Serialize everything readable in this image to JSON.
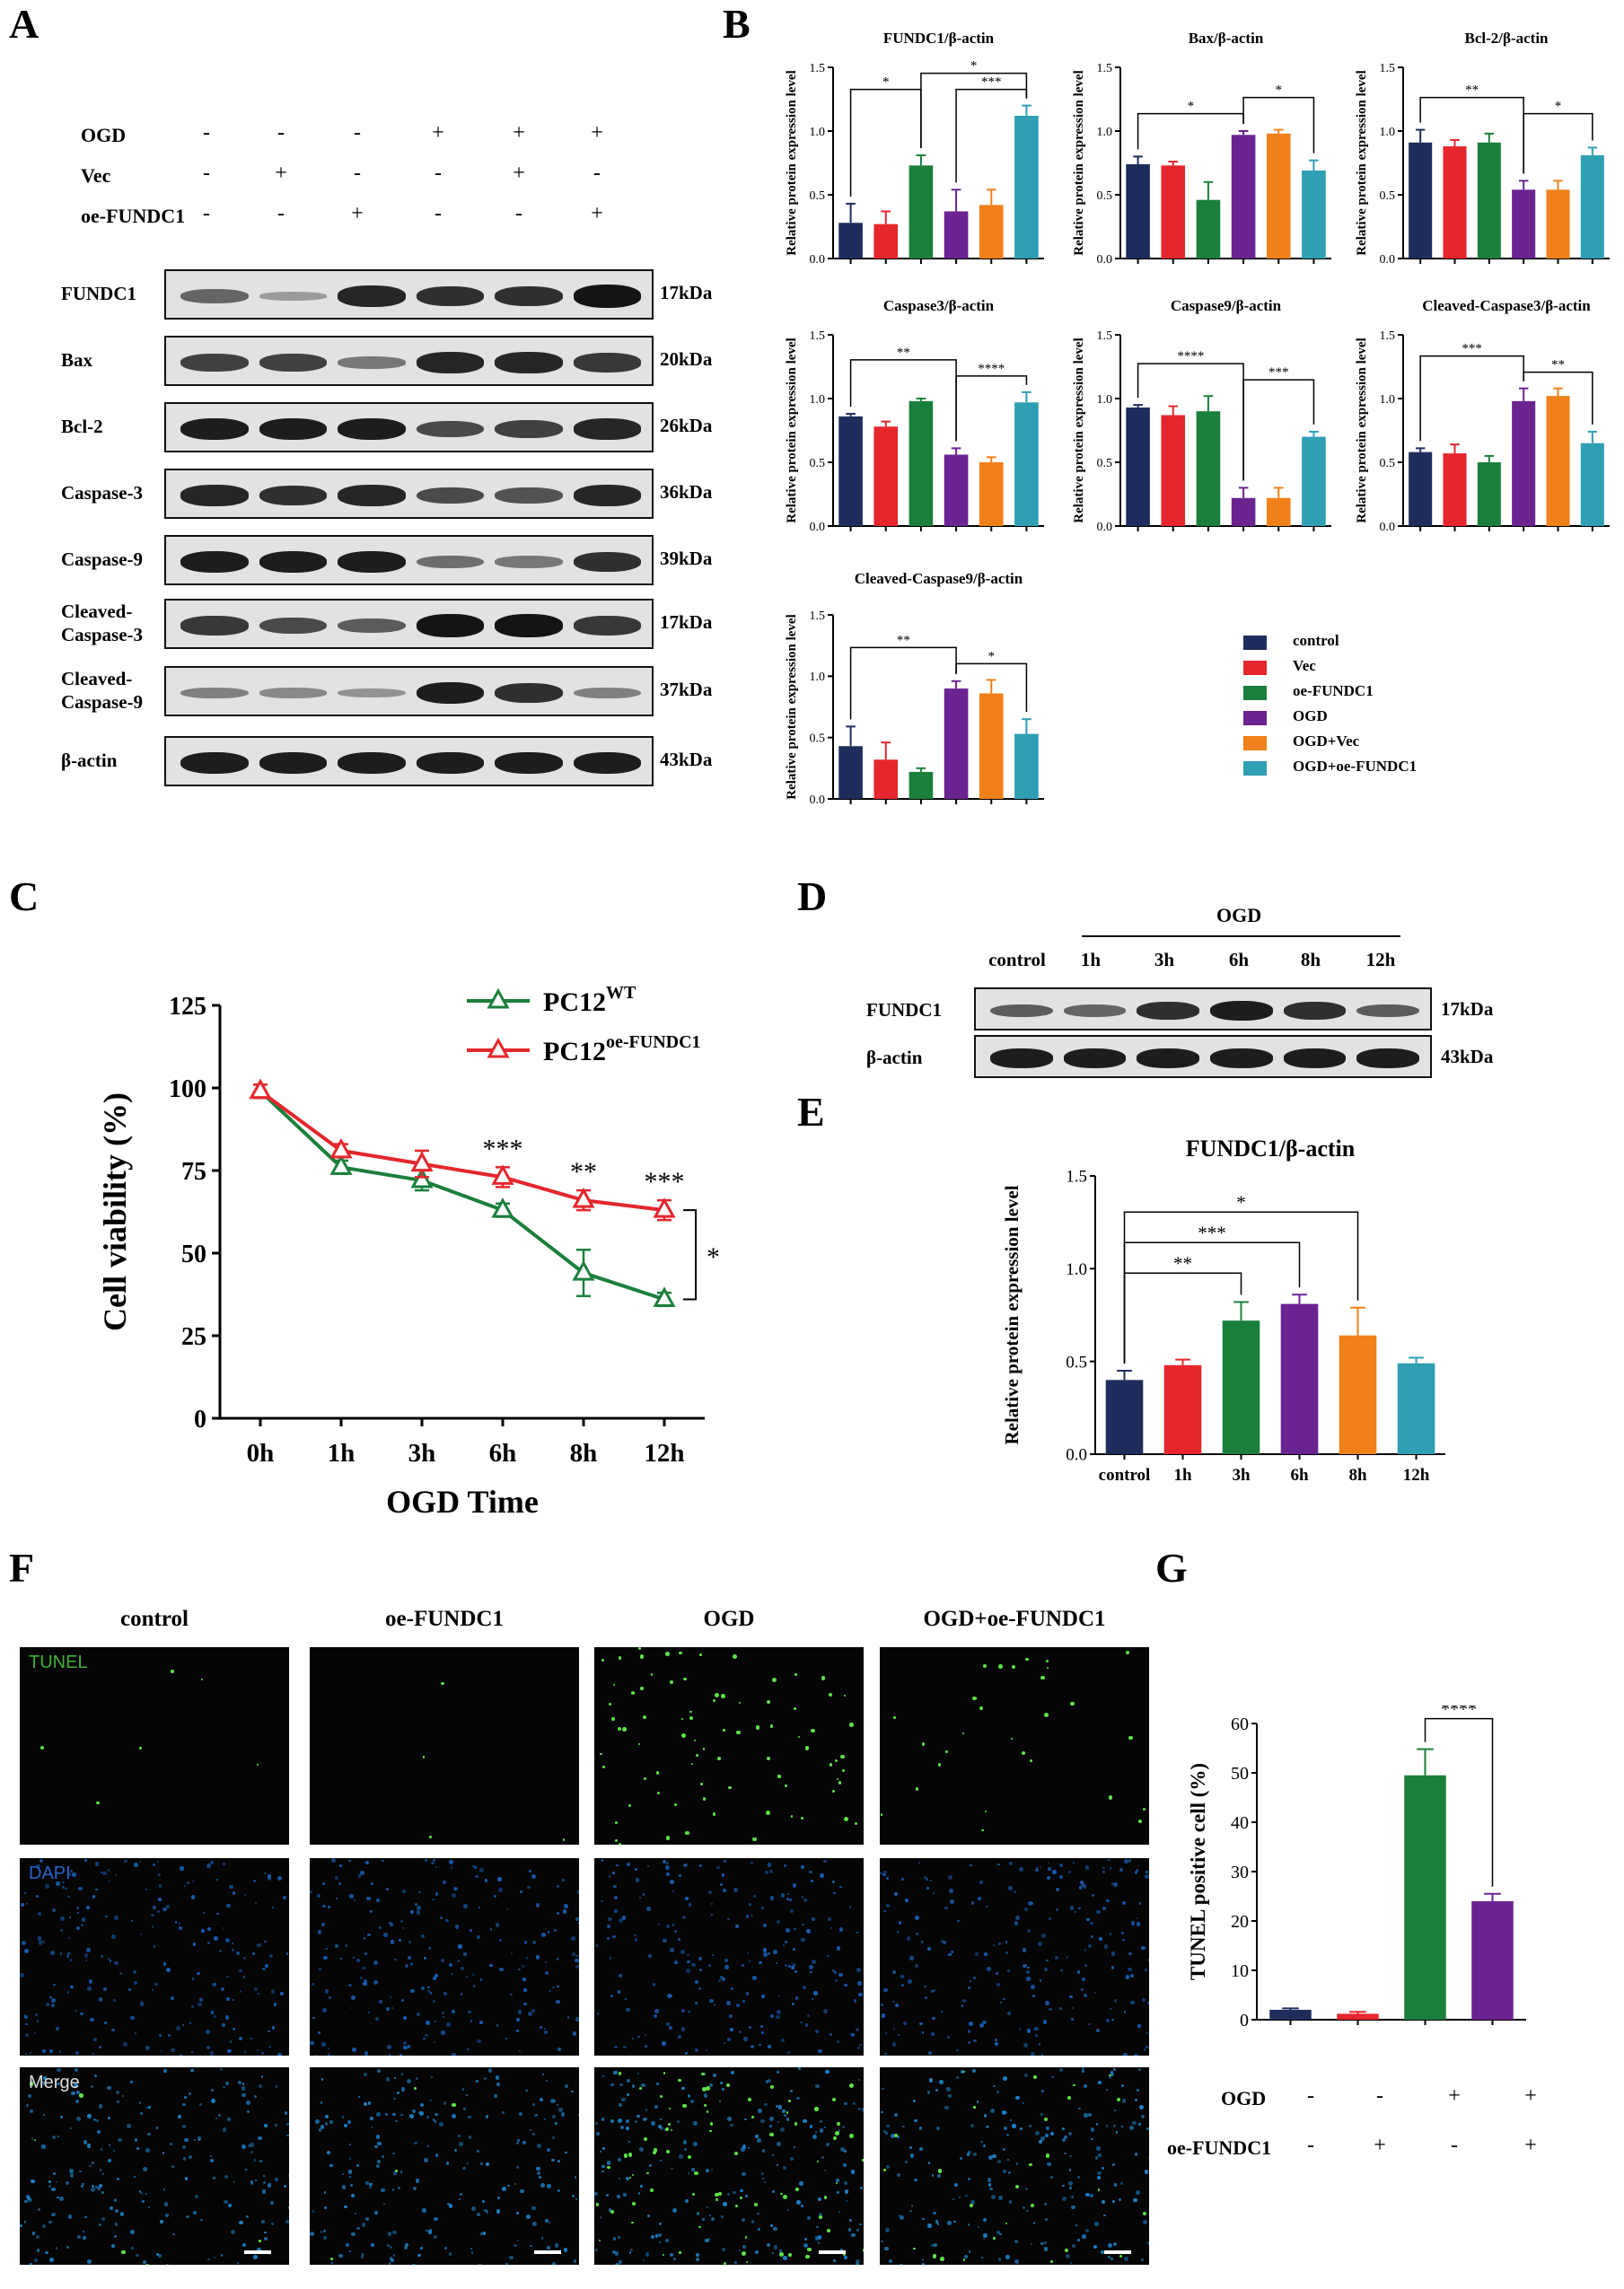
{
  "panels": {
    "A": "A",
    "B": "B",
    "C": "C",
    "D": "D",
    "E": "E",
    "F": "F",
    "G": "G"
  },
  "colors": {
    "control": "#1f2d5c",
    "vec": "#e5262d",
    "oe": "#1b7f3c",
    "ogd": "#6a2390",
    "ogd_vec": "#f08019",
    "ogd_oe": "#2f9fb3"
  },
  "panelA": {
    "condition_rows": [
      {
        "label": "OGD",
        "values": [
          "-",
          "-",
          "-",
          "+",
          "+",
          "+"
        ]
      },
      {
        "label": "Vec",
        "values": [
          "-",
          "+",
          "-",
          "-",
          "+",
          "-"
        ]
      },
      {
        "label": "oe-FUNDC1",
        "values": [
          "-",
          "-",
          "+",
          "-",
          "-",
          "+"
        ]
      }
    ],
    "blots": [
      {
        "label": "FUNDC1",
        "kda": "17kDa",
        "intensity": [
          0.55,
          0.25,
          0.9,
          0.85,
          0.85,
          1.0
        ]
      },
      {
        "label": "Bax",
        "kda": "20kDa",
        "intensity": [
          0.75,
          0.75,
          0.45,
          0.9,
          0.9,
          0.8
        ]
      },
      {
        "label": "Bcl-2",
        "kda": "26kDa",
        "intensity": [
          0.95,
          0.95,
          0.95,
          0.7,
          0.75,
          0.9
        ]
      },
      {
        "label": "Caspase-3",
        "kda": "36kDa",
        "intensity": [
          0.9,
          0.85,
          0.9,
          0.7,
          0.65,
          0.9
        ]
      },
      {
        "label": "Caspase-9",
        "kda": "39kDa",
        "intensity": [
          0.95,
          0.95,
          0.95,
          0.5,
          0.45,
          0.85
        ]
      },
      {
        "label": "Cleaved-\nCaspase-3",
        "kda": "17kDa",
        "intensity": [
          0.8,
          0.7,
          0.6,
          1.0,
          1.0,
          0.8
        ]
      },
      {
        "label": "Cleaved-\nCaspase-9",
        "kda": "37kDa",
        "intensity": [
          0.4,
          0.35,
          0.3,
          0.95,
          0.85,
          0.4
        ]
      },
      {
        "label": "β-actin",
        "kda": "43kDa",
        "intensity": [
          0.95,
          0.95,
          0.95,
          0.95,
          0.95,
          0.95
        ]
      }
    ]
  },
  "panelB": {
    "ylabel": "Relative protein expression level",
    "legend": [
      "control",
      "Vec",
      "oe-FUNDC1",
      "OGD",
      "OGD+Vec",
      "OGD+oe-FUNDC1"
    ]
  },
  "panelC": {
    "xlabel": "OGD Time",
    "ylabel": "Cell viability (%)",
    "legend_base": "PC12",
    "legend_sups": [
      "WT",
      "oe-FUNDC1"
    ],
    "annotations": [
      "***",
      "**",
      "***",
      "****"
    ]
  },
  "panelD": {
    "group_label": "OGD",
    "lanes": [
      "control",
      "1h",
      "3h",
      "6h",
      "8h",
      "12h"
    ],
    "blots": [
      {
        "label": "FUNDC1",
        "kda": "17kDa",
        "intensity": [
          0.6,
          0.55,
          0.85,
          0.95,
          0.85,
          0.6
        ]
      },
      {
        "label": "β-actin",
        "kda": "43kDa",
        "intensity": [
          0.95,
          0.95,
          0.95,
          0.95,
          0.95,
          0.95
        ]
      }
    ]
  },
  "panelF": {
    "columns": [
      "control",
      "oe-FUNDC1",
      "OGD",
      "OGD+oe-FUNDC1"
    ],
    "rows": [
      "TUNEL",
      "DAPI",
      "Merge"
    ],
    "tunel_density": [
      6,
      4,
      80,
      28
    ]
  },
  "panelG": {
    "rows": [
      {
        "label": "OGD",
        "values": [
          "-",
          "-",
          "+",
          "+"
        ]
      },
      {
        "label": "oe-FUNDC1",
        "values": [
          "-",
          "+",
          "-",
          "+"
        ]
      }
    ]
  },
  "chart_data": [
    {
      "id": "B1",
      "type": "bar",
      "title": "FUNDC1/β-actin",
      "ylabel": "Relative protein expression level",
      "categories": [
        "control",
        "Vec",
        "oe-FUNDC1",
        "OGD",
        "OGD+Vec",
        "OGD+oe-FUNDC1"
      ],
      "values": [
        0.28,
        0.27,
        0.73,
        0.37,
        0.42,
        1.12
      ],
      "errors": [
        0.15,
        0.1,
        0.08,
        0.17,
        0.12,
        0.08
      ],
      "ylim": [
        0,
        1.5
      ],
      "yticks": [
        0,
        0.5,
        1.0,
        1.5
      ],
      "sig": [
        {
          "from": 0,
          "to": 2,
          "label": "*",
          "level": 1
        },
        {
          "from": 2,
          "to": 5,
          "label": "*",
          "level": 2
        },
        {
          "from": 3,
          "to": 5,
          "label": "***",
          "level": 1
        }
      ]
    },
    {
      "id": "B2",
      "type": "bar",
      "title": "Bax/β-actin",
      "ylabel": "Relative protein expression level",
      "categories": [
        "control",
        "Vec",
        "oe-FUNDC1",
        "OGD",
        "OGD+Vec",
        "OGD+oe-FUNDC1"
      ],
      "values": [
        0.74,
        0.73,
        0.46,
        0.97,
        0.98,
        0.69
      ],
      "errors": [
        0.06,
        0.03,
        0.14,
        0.03,
        0.03,
        0.08
      ],
      "ylim": [
        0,
        1.5
      ],
      "yticks": [
        0,
        0.5,
        1.0,
        1.5
      ],
      "sig": [
        {
          "from": 0,
          "to": 3,
          "label": "*",
          "level": 1
        },
        {
          "from": 3,
          "to": 5,
          "label": "*",
          "level": 2
        }
      ]
    },
    {
      "id": "B3",
      "type": "bar",
      "title": "Bcl-2/β-actin",
      "ylabel": "Relative protein expression level",
      "categories": [
        "control",
        "Vec",
        "oe-FUNDC1",
        "OGD",
        "OGD+Vec",
        "OGD+oe-FUNDC1"
      ],
      "values": [
        0.91,
        0.88,
        0.91,
        0.54,
        0.54,
        0.81
      ],
      "errors": [
        0.1,
        0.05,
        0.07,
        0.07,
        0.07,
        0.06
      ],
      "ylim": [
        0,
        1.5
      ],
      "yticks": [
        0,
        0.5,
        1.0,
        1.5
      ],
      "sig": [
        {
          "from": 0,
          "to": 3,
          "label": "**",
          "level": 2
        },
        {
          "from": 3,
          "to": 5,
          "label": "*",
          "level": 1
        }
      ]
    },
    {
      "id": "B4",
      "type": "bar",
      "title": "Caspase3/β-actin",
      "ylabel": "Relative protein expression level",
      "categories": [
        "control",
        "Vec",
        "oe-FUNDC1",
        "OGD",
        "OGD+Vec",
        "OGD+oe-FUNDC1"
      ],
      "values": [
        0.86,
        0.78,
        0.98,
        0.56,
        0.5,
        0.97
      ],
      "errors": [
        0.02,
        0.04,
        0.02,
        0.05,
        0.04,
        0.08
      ],
      "ylim": [
        0,
        1.5
      ],
      "yticks": [
        0,
        0.5,
        1.0,
        1.5
      ],
      "sig": [
        {
          "from": 0,
          "to": 3,
          "label": "**",
          "level": 2
        },
        {
          "from": 3,
          "to": 5,
          "label": "****",
          "level": 1
        }
      ]
    },
    {
      "id": "B5",
      "type": "bar",
      "title": "Caspase9/β-actin",
      "ylabel": "Relative protein expression level",
      "categories": [
        "control",
        "Vec",
        "oe-FUNDC1",
        "OGD",
        "OGD+Vec",
        "OGD+oe-FUNDC1"
      ],
      "values": [
        0.93,
        0.87,
        0.9,
        0.22,
        0.22,
        0.7
      ],
      "errors": [
        0.02,
        0.07,
        0.12,
        0.08,
        0.08,
        0.04
      ],
      "ylim": [
        0,
        1.5
      ],
      "yticks": [
        0,
        0.5,
        1.0,
        1.5
      ],
      "sig": [
        {
          "from": 0,
          "to": 3,
          "label": "****",
          "level": 2
        },
        {
          "from": 3,
          "to": 5,
          "label": "***",
          "level": 1
        }
      ]
    },
    {
      "id": "B6",
      "type": "bar",
      "title": "Cleaved-Caspase3/β-actin",
      "ylabel": "Relative protein expression level",
      "categories": [
        "control",
        "Vec",
        "oe-FUNDC1",
        "OGD",
        "OGD+Vec",
        "OGD+oe-FUNDC1"
      ],
      "values": [
        0.58,
        0.57,
        0.5,
        0.98,
        1.02,
        0.65
      ],
      "errors": [
        0.03,
        0.07,
        0.05,
        0.1,
        0.06,
        0.09
      ],
      "ylim": [
        0,
        1.5
      ],
      "yticks": [
        0,
        0.5,
        1.0,
        1.5
      ],
      "sig": [
        {
          "from": 0,
          "to": 3,
          "label": "***",
          "level": 2
        },
        {
          "from": 3,
          "to": 5,
          "label": "**",
          "level": 1
        }
      ]
    },
    {
      "id": "B7",
      "type": "bar",
      "title": "Cleaved-Caspase9/β-actin",
      "ylabel": "Relative protein expression level",
      "categories": [
        "control",
        "Vec",
        "oe-FUNDC1",
        "OGD",
        "OGD+Vec",
        "OGD+oe-FUNDC1"
      ],
      "values": [
        0.43,
        0.32,
        0.22,
        0.9,
        0.86,
        0.53
      ],
      "errors": [
        0.16,
        0.14,
        0.03,
        0.06,
        0.11,
        0.12
      ],
      "ylim": [
        0,
        1.5
      ],
      "yticks": [
        0,
        0.5,
        1.0,
        1.5
      ],
      "sig": [
        {
          "from": 0,
          "to": 3,
          "label": "**",
          "level": 2
        },
        {
          "from": 3,
          "to": 5,
          "label": "*",
          "level": 1
        }
      ]
    },
    {
      "id": "C",
      "type": "line",
      "xlabel": "OGD Time",
      "ylabel": "Cell viability (%)",
      "x": [
        "0h",
        "1h",
        "3h",
        "6h",
        "8h",
        "12h"
      ],
      "ylim": [
        0,
        125
      ],
      "yticks": [
        0,
        25,
        50,
        75,
        100,
        125
      ],
      "series": [
        {
          "name": "PC12WT",
          "values": [
            99,
            76,
            72,
            63,
            44,
            36
          ],
          "errors": [
            2,
            2,
            3,
            2,
            7,
            2
          ]
        },
        {
          "name": "PC12oe-FUNDC1",
          "values": [
            99,
            81,
            77,
            73,
            66,
            63
          ],
          "errors": [
            2,
            2,
            4,
            3,
            3,
            3
          ]
        }
      ]
    },
    {
      "id": "E",
      "type": "bar",
      "title": "FUNDC1/β-actin",
      "ylabel": "Relative protein expression level",
      "categories": [
        "control",
        "1h",
        "3h",
        "6h",
        "8h",
        "12h"
      ],
      "values": [
        0.4,
        0.48,
        0.72,
        0.81,
        0.64,
        0.49
      ],
      "errors": [
        0.05,
        0.03,
        0.1,
        0.05,
        0.15,
        0.03
      ],
      "ylim": [
        0,
        1.5
      ],
      "yticks": [
        0,
        0.5,
        1.0,
        1.5
      ],
      "sig": [
        {
          "from": 0,
          "to": 2,
          "label": "**",
          "level": 1
        },
        {
          "from": 0,
          "to": 3,
          "label": "***",
          "level": 2
        },
        {
          "from": 0,
          "to": 4,
          "label": "*",
          "level": 3
        }
      ]
    },
    {
      "id": "G",
      "type": "bar",
      "ylabel": "TUNEL positive cell (%)",
      "categories": [
        "control",
        "oe-FUNDC1",
        "OGD",
        "OGD+oe-FUNDC1"
      ],
      "values": [
        2,
        1.2,
        49.5,
        24
      ],
      "errors": [
        0.3,
        0.4,
        5.3,
        1.5
      ],
      "ylim": [
        0,
        60
      ],
      "yticks": [
        0,
        10,
        20,
        30,
        40,
        50,
        60
      ],
      "sig": [
        {
          "from": 2,
          "to": 3,
          "label": "****",
          "level": 1
        }
      ]
    }
  ]
}
